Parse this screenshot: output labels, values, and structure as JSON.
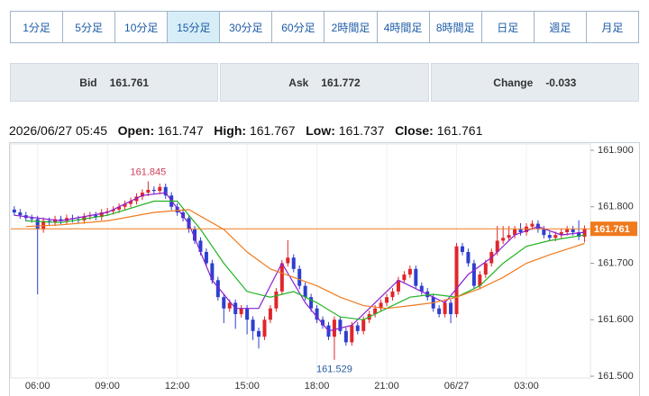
{
  "tabs": [
    "1分足",
    "5分足",
    "10分足",
    "15分足",
    "30分足",
    "60分足",
    "2時間足",
    "4時間足",
    "8時間足",
    "日足",
    "週足",
    "月足"
  ],
  "active_tab": 3,
  "quote": [
    {
      "label": "Bid",
      "value": "161.761"
    },
    {
      "label": "Ask",
      "value": "161.772"
    },
    {
      "label": "Change",
      "value": "-0.033"
    }
  ],
  "info": {
    "datetime": "2026/06/27 05:45",
    "open_label": "Open:",
    "open": "161.747",
    "high_label": "High:",
    "high": "161.767",
    "low_label": "Low:",
    "low": "161.737",
    "close_label": "Close:",
    "close": "161.761"
  },
  "chart_data": {
    "type": "candlestick",
    "up_color": "#e0262b",
    "down_color": "#2d3fd0",
    "current_color": "#f07a1e",
    "xgrid": true,
    "x": [
      5,
      5.25,
      5.5,
      5.75,
      6,
      6.25,
      6.5,
      6.75,
      7,
      7.25,
      7.5,
      7.75,
      8,
      8.25,
      8.5,
      8.75,
      9,
      9.25,
      9.5,
      9.75,
      10,
      10.25,
      10.5,
      10.75,
      11,
      11.25,
      11.5,
      11.75,
      12,
      12.25,
      12.5,
      12.75,
      13,
      13.25,
      13.5,
      13.75,
      14,
      14.25,
      14.5,
      14.75,
      15,
      15.25,
      15.5,
      15.75,
      16,
      16.25,
      16.5,
      16.75,
      17,
      17.25,
      17.5,
      17.75,
      18,
      18.25,
      18.5,
      18.75,
      19,
      19.25,
      19.5,
      19.75,
      20,
      20.25,
      20.5,
      20.75,
      21,
      21.25,
      21.5,
      21.75,
      22,
      22.25,
      22.5,
      22.75,
      23,
      23.25,
      23.5,
      23.75,
      24,
      24.25,
      24.5,
      24.75,
      25,
      25.25,
      25.5,
      25.75,
      26,
      26.25,
      26.5,
      26.75,
      27,
      27.25,
      27.5,
      27.75,
      28,
      28.25,
      28.5,
      28.75,
      29,
      29.25,
      29.5
    ],
    "open": [
      161.795,
      161.79,
      161.785,
      161.78,
      161.778,
      161.76,
      161.775,
      161.772,
      161.778,
      161.775,
      161.78,
      161.778,
      161.776,
      161.783,
      161.785,
      161.782,
      161.79,
      161.792,
      161.795,
      161.8,
      161.805,
      161.81,
      161.818,
      161.825,
      161.83,
      161.828,
      161.835,
      161.82,
      161.8,
      161.79,
      161.78,
      161.76,
      161.74,
      161.72,
      161.7,
      161.67,
      161.64,
      161.62,
      161.63,
      161.61,
      161.62,
      161.6,
      161.58,
      161.57,
      161.6,
      161.62,
      161.65,
      161.7,
      161.71,
      161.69,
      161.66,
      161.64,
      161.62,
      161.6,
      161.59,
      161.57,
      161.6,
      161.58,
      161.56,
      161.59,
      161.58,
      161.6,
      161.61,
      161.62,
      161.63,
      161.64,
      161.65,
      161.67,
      161.68,
      161.69,
      161.66,
      161.65,
      161.64,
      161.62,
      161.61,
      161.63,
      161.61,
      161.73,
      161.72,
      161.7,
      161.66,
      161.68,
      161.7,
      161.72,
      161.74,
      161.745,
      161.75,
      161.76,
      161.755,
      161.765,
      161.77,
      161.76,
      161.75,
      161.745,
      161.75,
      161.755,
      161.76,
      161.755,
      161.747
    ],
    "high": [
      161.801,
      161.796,
      161.791,
      161.786,
      161.784,
      161.781,
      161.781,
      161.784,
      161.784,
      161.786,
      161.786,
      161.784,
      161.789,
      161.791,
      161.791,
      161.796,
      161.798,
      161.801,
      161.806,
      161.811,
      161.816,
      161.824,
      161.831,
      161.845,
      161.836,
      161.841,
      161.841,
      161.826,
      161.806,
      161.796,
      161.786,
      161.766,
      161.746,
      161.726,
      161.706,
      161.676,
      161.646,
      161.636,
      161.636,
      161.626,
      161.626,
      161.606,
      161.586,
      161.606,
      161.626,
      161.656,
      161.706,
      161.741,
      161.716,
      161.696,
      161.666,
      161.646,
      161.626,
      161.606,
      161.596,
      161.606,
      161.606,
      161.586,
      161.596,
      161.596,
      161.606,
      161.616,
      161.626,
      161.636,
      161.646,
      161.656,
      161.676,
      161.686,
      161.696,
      161.696,
      161.666,
      161.656,
      161.646,
      161.626,
      161.636,
      161.636,
      161.736,
      161.736,
      161.726,
      161.706,
      161.686,
      161.706,
      161.726,
      161.766,
      161.766,
      161.766,
      161.766,
      161.771,
      161.771,
      161.776,
      161.776,
      161.766,
      161.756,
      161.756,
      161.761,
      161.766,
      161.766,
      161.776,
      161.767
    ],
    "low": [
      161.784,
      161.779,
      161.774,
      161.772,
      161.645,
      161.754,
      161.766,
      161.766,
      161.769,
      161.769,
      161.772,
      161.77,
      161.77,
      161.777,
      161.776,
      161.776,
      161.784,
      161.786,
      161.789,
      161.794,
      161.799,
      161.804,
      161.812,
      161.819,
      161.822,
      161.822,
      161.814,
      161.794,
      161.784,
      161.774,
      161.754,
      161.734,
      161.714,
      161.694,
      161.664,
      161.634,
      161.594,
      161.614,
      161.584,
      161.604,
      161.574,
      161.564,
      161.549,
      161.564,
      161.594,
      161.614,
      161.644,
      161.694,
      161.684,
      161.654,
      161.634,
      161.614,
      161.594,
      161.584,
      161.564,
      161.529,
      161.574,
      161.554,
      161.554,
      161.574,
      161.574,
      161.594,
      161.604,
      161.614,
      161.624,
      161.634,
      161.644,
      161.664,
      161.674,
      161.654,
      161.644,
      161.634,
      161.614,
      161.604,
      161.604,
      161.594,
      161.604,
      161.714,
      161.694,
      161.654,
      161.654,
      161.674,
      161.694,
      161.714,
      161.734,
      161.739,
      161.744,
      161.749,
      161.749,
      161.759,
      161.754,
      161.744,
      161.739,
      161.739,
      161.744,
      161.749,
      161.749,
      161.741,
      161.737
    ],
    "close": [
      161.79,
      161.785,
      161.78,
      161.778,
      161.76,
      161.775,
      161.772,
      161.778,
      161.775,
      161.78,
      161.778,
      161.776,
      161.783,
      161.785,
      161.782,
      161.79,
      161.792,
      161.795,
      161.8,
      161.805,
      161.81,
      161.818,
      161.825,
      161.83,
      161.828,
      161.835,
      161.82,
      161.8,
      161.79,
      161.78,
      161.76,
      161.74,
      161.72,
      161.7,
      161.67,
      161.64,
      161.62,
      161.63,
      161.61,
      161.62,
      161.6,
      161.58,
      161.57,
      161.6,
      161.62,
      161.65,
      161.7,
      161.71,
      161.69,
      161.66,
      161.64,
      161.62,
      161.6,
      161.59,
      161.57,
      161.6,
      161.58,
      161.56,
      161.59,
      161.58,
      161.6,
      161.61,
      161.62,
      161.63,
      161.64,
      161.65,
      161.67,
      161.68,
      161.69,
      161.66,
      161.65,
      161.64,
      161.62,
      161.61,
      161.63,
      161.61,
      161.73,
      161.72,
      161.7,
      161.66,
      161.68,
      161.7,
      161.72,
      161.74,
      161.745,
      161.75,
      161.76,
      161.755,
      161.765,
      161.77,
      161.76,
      161.75,
      161.745,
      161.75,
      161.755,
      161.76,
      161.755,
      161.747,
      161.761
    ],
    "ma": [
      {
        "color": "#8a1fd0",
        "x": [
          5,
          7,
          9,
          10.5,
          11.5,
          12.5,
          13.5,
          14.5,
          15.5,
          16.5,
          17.5,
          18.5,
          19.5,
          20.5,
          21.5,
          22.5,
          23.5,
          24.5,
          25.5,
          26.5,
          27.5,
          28.5,
          29.5
        ],
        "values": [
          161.785,
          161.775,
          161.79,
          161.82,
          161.825,
          161.77,
          161.67,
          161.62,
          161.62,
          161.7,
          161.63,
          161.58,
          161.59,
          161.63,
          161.67,
          161.65,
          161.63,
          161.68,
          161.71,
          161.75,
          161.765,
          161.75,
          161.755
        ]
      },
      {
        "color": "#22b322",
        "x": [
          5.5,
          7,
          9,
          11,
          12,
          13,
          14,
          15,
          16,
          17,
          18,
          19,
          20,
          21,
          22,
          23,
          24,
          25,
          26,
          27,
          28,
          29.5
        ],
        "values": [
          161.775,
          161.772,
          161.785,
          161.81,
          161.81,
          161.76,
          161.7,
          161.65,
          161.64,
          161.65,
          161.63,
          161.605,
          161.6,
          161.62,
          161.64,
          161.645,
          161.64,
          161.66,
          161.7,
          161.73,
          161.74,
          161.75
        ]
      },
      {
        "color": "#f07a1e",
        "x": [
          5.5,
          7,
          9,
          11,
          12.5,
          14,
          15,
          16,
          17,
          18,
          19,
          20,
          21,
          22,
          23,
          24,
          25,
          26,
          27,
          28,
          29.5
        ],
        "values": [
          161.765,
          161.768,
          161.775,
          161.79,
          161.795,
          161.76,
          161.72,
          161.69,
          161.675,
          161.66,
          161.64,
          161.625,
          161.62,
          161.625,
          161.63,
          161.64,
          161.655,
          161.675,
          161.7,
          161.715,
          161.735
        ]
      }
    ],
    "xlim": [
      4.85,
      29.75
    ],
    "xticks": [
      {
        "value": 6,
        "label": "06:00"
      },
      {
        "value": 9,
        "label": "09:00"
      },
      {
        "value": 12,
        "label": "12:00"
      },
      {
        "value": 15,
        "label": "15:00"
      },
      {
        "value": 18,
        "label": "18:00"
      },
      {
        "value": 21,
        "label": "21:00"
      },
      {
        "value": 24,
        "label": "06/27"
      },
      {
        "value": 27,
        "label": "03:00"
      }
    ],
    "ylim": [
      161.5,
      161.9
    ],
    "yticks": [
      {
        "value": 161.5,
        "label": "161.500"
      },
      {
        "value": 161.6,
        "label": "161.600"
      },
      {
        "value": 161.7,
        "label": "161.700"
      },
      {
        "value": 161.8,
        "label": "161.800"
      },
      {
        "value": 161.9,
        "label": "161.900"
      }
    ]
  }
}
